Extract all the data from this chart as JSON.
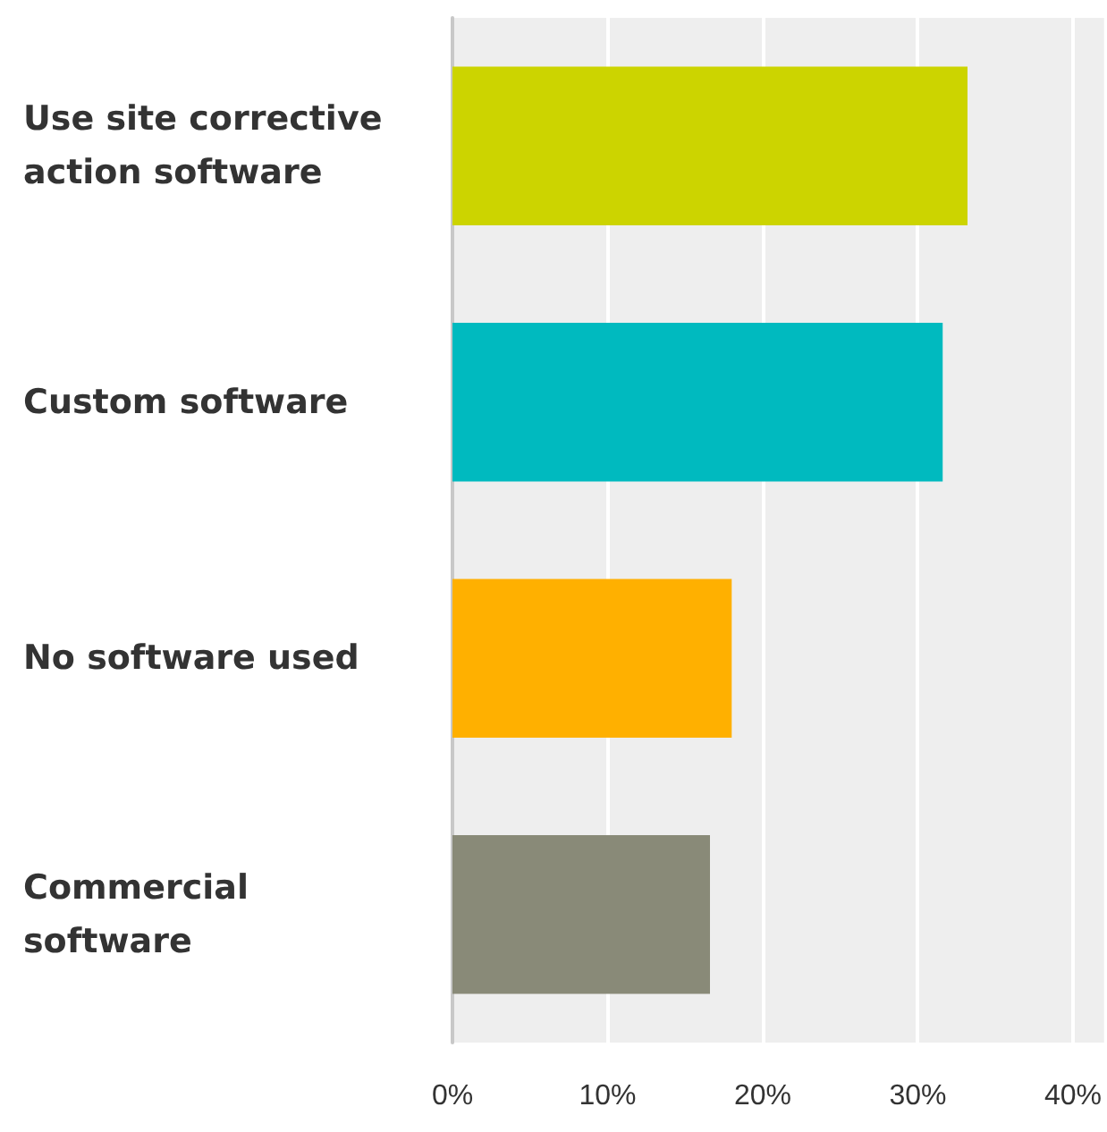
{
  "chart_data": {
    "type": "bar",
    "orientation": "horizontal",
    "categories": [
      "Use site corrective action software",
      "Custom software",
      "No software used",
      "Commercial software"
    ],
    "values": [
      33.2,
      31.6,
      18.0,
      16.6
    ],
    "colors": [
      "#ccd400",
      "#00babf",
      "#ffb000",
      "#898a78"
    ],
    "xlim": [
      0,
      42
    ],
    "xticks": [
      {
        "value": 0,
        "label": "0%"
      },
      {
        "value": 10,
        "label": "10%"
      },
      {
        "value": 20,
        "label": "20%"
      },
      {
        "value": 30,
        "label": "30%"
      },
      {
        "value": 40,
        "label": "40%"
      }
    ],
    "grid": "x"
  }
}
